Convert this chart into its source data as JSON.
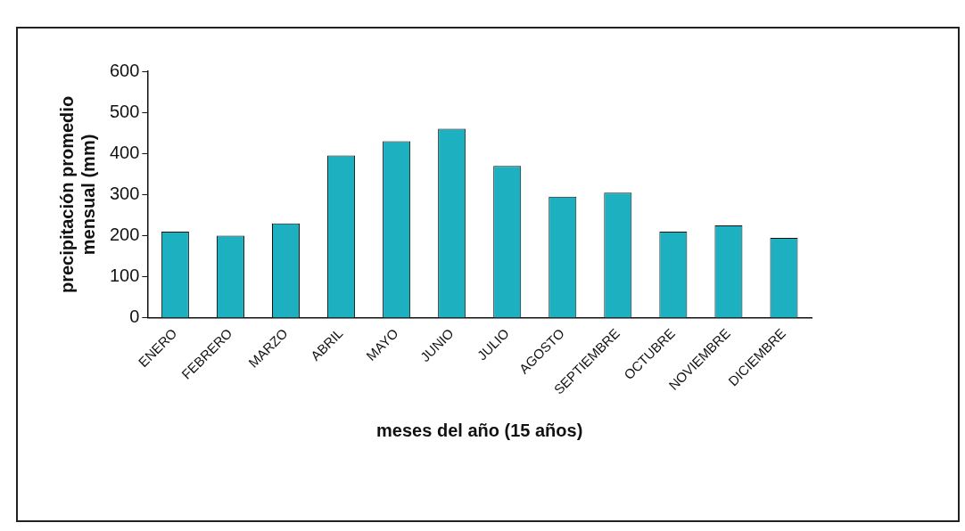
{
  "chart_data": {
    "type": "bar",
    "xlabel": "meses del año (15 años)",
    "ylabel": "precipitación promedio mensual (mm)",
    "categories": [
      "ENERO",
      "FEBRERO",
      "MARZO",
      "ABRIL",
      "MAYO",
      "JUNIO",
      "JULIO",
      "AGOSTO",
      "SEPTIEMBRE",
      "OCTUBRE",
      "NOVIEMBRE",
      "DICIEMBRE"
    ],
    "values": [
      210,
      200,
      230,
      395,
      430,
      460,
      370,
      295,
      305,
      210,
      225,
      195
    ],
    "color": "#1db0c0",
    "ylim": [
      0,
      600
    ],
    "yticks": [
      0,
      100,
      200,
      300,
      400,
      500,
      600
    ],
    "grid": false,
    "legend": false
  }
}
